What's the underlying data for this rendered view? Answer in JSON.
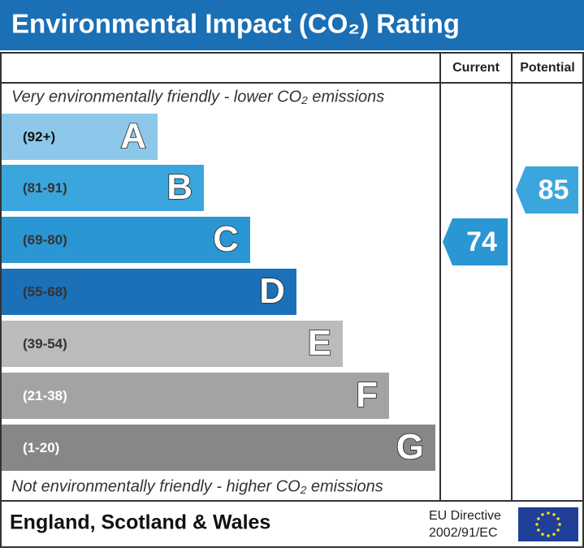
{
  "header": {
    "title": "Environmental Impact (CO₂) Rating"
  },
  "columns": {
    "current": "Current",
    "potential": "Potential"
  },
  "top_note": "Very environmentally friendly - lower CO₂ emissions",
  "bottom_note": "Not environmentally friendly - higher CO₂ emissions",
  "bands": [
    {
      "range": "(92+)",
      "letter": "A",
      "color": "#8dc8ea",
      "text_color": "#111111"
    },
    {
      "range": "(81-91)",
      "letter": "B",
      "color": "#3ba6dd",
      "text_color": "#333333"
    },
    {
      "range": "(69-80)",
      "letter": "C",
      "color": "#2b96d4",
      "text_color": "#333333"
    },
    {
      "range": "(55-68)",
      "letter": "D",
      "color": "#1b70b7",
      "text_color": "#333333"
    },
    {
      "range": "(39-54)",
      "letter": "E",
      "color": "#bbbbbb",
      "text_color": "#333333"
    },
    {
      "range": "(21-38)",
      "letter": "F",
      "color": "#a3a3a3",
      "text_color": "#ffffff"
    },
    {
      "range": "(1-20)",
      "letter": "G",
      "color": "#878787",
      "text_color": "#ffffff"
    }
  ],
  "ratings": {
    "current": 74,
    "potential": 85
  },
  "footer": {
    "region": "England, Scotland & Wales",
    "directive_line1": "EU Directive",
    "directive_line2": "2002/91/EC"
  }
}
